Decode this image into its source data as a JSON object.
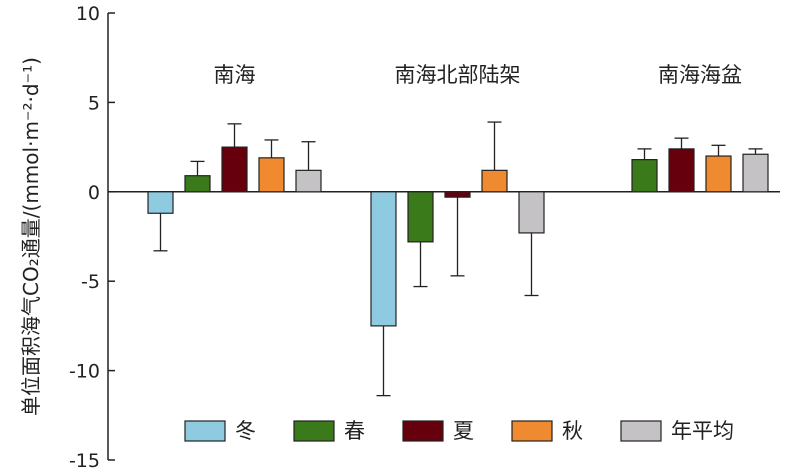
{
  "chart_data": {
    "type": "bar",
    "ylabel": "单位面积海气CO₂通量/(mmol·m⁻²·d⁻¹)",
    "ylim": [
      -15,
      10
    ],
    "yticks": [
      10,
      5,
      0,
      -5,
      -10,
      -15
    ],
    "ytick_labels": [
      "10",
      "5",
      "0",
      "-5",
      "-10",
      "-15"
    ],
    "categories": [
      "南海",
      "南海北部陆架",
      "南海海盆"
    ],
    "series": [
      {
        "name": "冬",
        "color": "#8ecbe1",
        "values": [
          -1.2,
          -7.5,
          null
        ],
        "errors": [
          2.1,
          3.9,
          null
        ]
      },
      {
        "name": "春",
        "color": "#3a7a1a",
        "values": [
          0.9,
          -2.8,
          1.8
        ],
        "errors": [
          0.8,
          2.5,
          0.6
        ]
      },
      {
        "name": "夏",
        "color": "#66000c",
        "values": [
          2.5,
          -0.3,
          2.4
        ],
        "errors": [
          1.3,
          4.4,
          0.6
        ]
      },
      {
        "name": "秋",
        "color": "#f08a30",
        "values": [
          1.9,
          1.2,
          2.0
        ],
        "errors": [
          1.0,
          2.7,
          0.6
        ]
      },
      {
        "name": "年平均",
        "color": "#c4c2c5",
        "values": [
          1.2,
          -2.3,
          2.1
        ],
        "errors": [
          1.6,
          3.5,
          0.3
        ]
      }
    ],
    "legend": "bottom",
    "grid": false
  }
}
